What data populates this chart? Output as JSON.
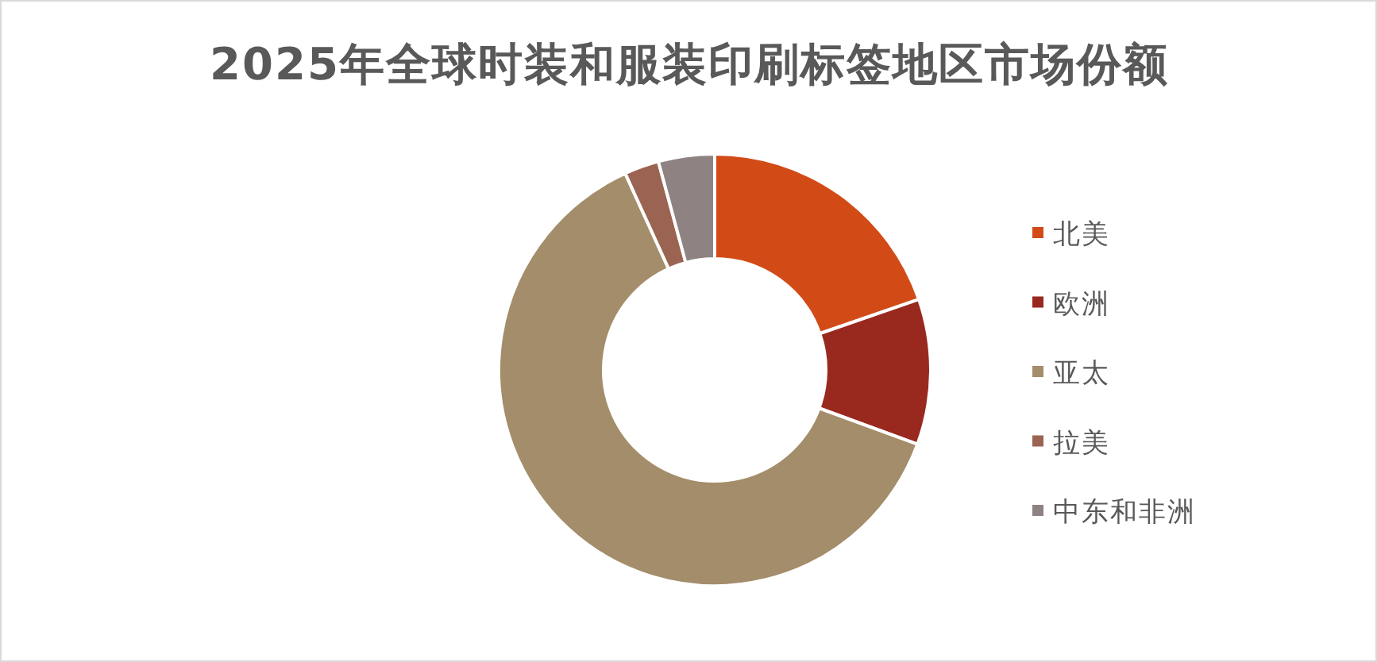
{
  "chart_data": {
    "type": "donut",
    "title": "2025年全球时装和服装印刷标签地区市场份额",
    "categories": [
      "北美",
      "欧洲",
      "亚太",
      "拉美",
      "中东和非洲"
    ],
    "values": [
      19.7,
      10.9,
      62.6,
      2.6,
      4.2
    ],
    "colors": [
      "#d24b17",
      "#99291e",
      "#a48d6a",
      "#9b6351",
      "#8f8282"
    ],
    "legend": "right"
  }
}
